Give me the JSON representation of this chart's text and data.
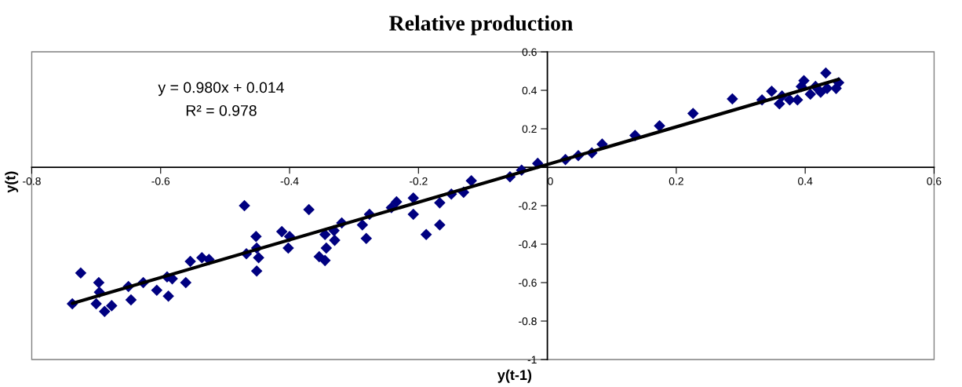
{
  "chart_data": {
    "type": "scatter",
    "title": "Relative production",
    "xlabel": "y(t-1)",
    "ylabel": "y(t)",
    "annotations": [
      "y = 0.980x + 0.014",
      "R² = 0.978"
    ],
    "xlim": [
      -0.8,
      0.6
    ],
    "ylim": [
      -1,
      0.6
    ],
    "xticks": [
      -0.8,
      -0.6,
      -0.4,
      -0.2,
      0,
      0.2,
      0.4,
      0.6
    ],
    "yticks": [
      -1,
      -0.8,
      -0.6,
      -0.4,
      -0.2,
      {
        "value": 0,
        "label": null
      },
      0.2,
      0.4,
      0.6
    ],
    "grid": false,
    "marker": "diamond",
    "series": [
      {
        "color": "#000080",
        "x": [
          -0.737,
          -0.724,
          -0.696,
          -0.695,
          -0.7,
          -0.687,
          -0.676,
          -0.65,
          -0.646,
          -0.627,
          -0.606,
          -0.59,
          -0.588,
          -0.582,
          -0.561,
          -0.554,
          -0.536,
          -0.525,
          -0.47,
          -0.467,
          -0.452,
          -0.451,
          -0.448,
          -0.451,
          -0.412,
          -0.4,
          -0.402,
          -0.37,
          -0.354,
          -0.345,
          -0.343,
          -0.345,
          -0.331,
          -0.33,
          -0.319,
          -0.287,
          -0.281,
          -0.276,
          -0.242,
          -0.234,
          -0.208,
          -0.208,
          -0.188,
          -0.167,
          -0.167,
          -0.149,
          -0.13,
          -0.118,
          -0.058,
          -0.04,
          -0.015,
          0.028,
          0.048,
          0.069,
          0.085,
          0.136,
          0.174,
          0.226,
          0.287,
          0.333,
          0.348,
          0.36,
          0.364,
          0.376,
          0.388,
          0.394,
          0.398,
          0.408,
          0.416,
          0.424,
          0.432,
          0.434,
          0.448,
          0.452
        ],
        "values": [
          -0.71,
          -0.55,
          -0.6,
          -0.65,
          -0.71,
          -0.75,
          -0.72,
          -0.62,
          -0.69,
          -0.6,
          -0.64,
          -0.57,
          -0.67,
          -0.58,
          -0.6,
          -0.49,
          -0.47,
          -0.48,
          -0.2,
          -0.45,
          -0.36,
          -0.42,
          -0.47,
          -0.54,
          -0.335,
          -0.36,
          -0.42,
          -0.22,
          -0.465,
          -0.485,
          -0.42,
          -0.35,
          -0.33,
          -0.38,
          -0.29,
          -0.3,
          -0.37,
          -0.245,
          -0.21,
          -0.18,
          -0.16,
          -0.245,
          -0.35,
          -0.185,
          -0.3,
          -0.14,
          -0.13,
          -0.07,
          -0.05,
          -0.015,
          0.02,
          0.04,
          0.06,
          0.075,
          0.12,
          0.165,
          0.215,
          0.28,
          0.355,
          0.35,
          0.395,
          0.33,
          0.37,
          0.35,
          0.35,
          0.42,
          0.45,
          0.38,
          0.42,
          0.39,
          0.49,
          0.41,
          0.41,
          0.44
        ]
      },
      {
        "type": "line",
        "marker": "none",
        "color": "#000000",
        "x": [
          -0.737,
          0.452
        ],
        "values": [
          -0.708,
          0.457
        ]
      }
    ]
  }
}
